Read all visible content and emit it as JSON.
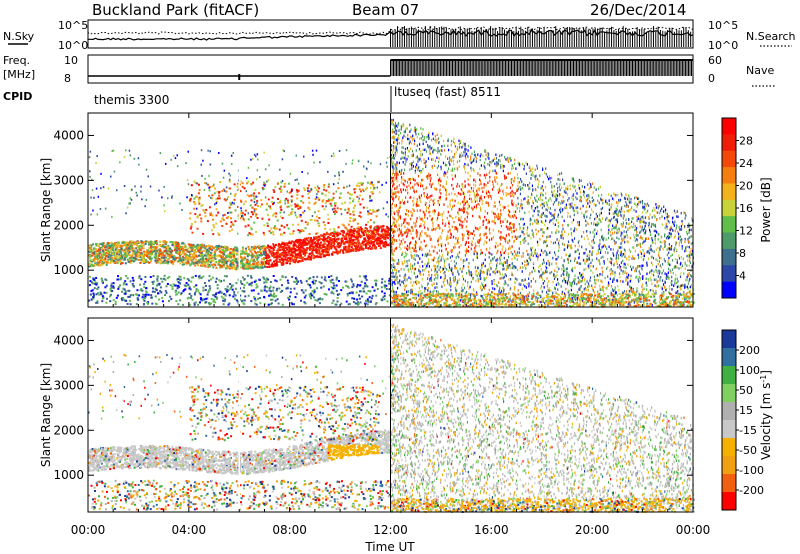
{
  "header": {
    "site": "Buckland Park (fitACF)",
    "beam": "Beam 07",
    "date": "26/Dec/2014"
  },
  "strip": {
    "nsky_label": "N.Sky",
    "nsky_ticks": [
      "10^5",
      "10^0"
    ],
    "nsearch_label": "N.Search",
    "nsearch_ticks": [
      "10^5",
      "10^0"
    ],
    "freq_label": "Freq.",
    "freq_unit": "[MHz]",
    "freq_ticks": [
      "10",
      "8"
    ],
    "nave_label": "Nave",
    "nave_ticks": [
      "60",
      "0"
    ],
    "cpid_label": "CPID",
    "cpid_segments": [
      "themis 3300",
      "ltuseq (fast) 8511"
    ]
  },
  "colors": {
    "power": [
      "#0000ff",
      "#2b48a8",
      "#3f6f8e",
      "#4e9a68",
      "#5fbf4a",
      "#c8d23a",
      "#f3b21c",
      "#f57e10",
      "#f34a0c",
      "#f01e08",
      "#ff0000"
    ],
    "velocity": [
      "#ff0000",
      "#f06010",
      "#f0a010",
      "#f5b000",
      "#c8c8c8",
      "#b0b0b0",
      "#7fd060",
      "#40b040",
      "#3070a0",
      "#1a3a9a"
    ]
  },
  "chart_data": [
    {
      "type": "heatmap",
      "name": "power",
      "xlabel": "",
      "ylabel": "Slant Range [km]",
      "x_range": [
        "00:00",
        "00:00 (+24h)"
      ],
      "ylim": [
        180,
        4500
      ],
      "yticks": [
        1000,
        2000,
        3000,
        4000
      ],
      "colorbar": {
        "label": "Power [dB]",
        "range": [
          0,
          32
        ],
        "ticks": [
          4,
          8,
          12,
          16,
          20,
          24,
          28
        ]
      }
    },
    {
      "type": "heatmap",
      "name": "velocity",
      "xlabel": "Time UT",
      "ylabel": "Slant Range [km]",
      "x_ticks": [
        "00:00",
        "04:00",
        "08:00",
        "12:00",
        "16:00",
        "20:00",
        "00:00"
      ],
      "ylim": [
        180,
        4500
      ],
      "yticks": [
        1000,
        2000,
        3000,
        4000
      ],
      "colorbar": {
        "label": "Velocity [m s^-1]",
        "ticks": [
          "200",
          "100",
          "50",
          "15",
          "-15",
          "-50",
          "-100",
          "-200"
        ]
      }
    }
  ]
}
